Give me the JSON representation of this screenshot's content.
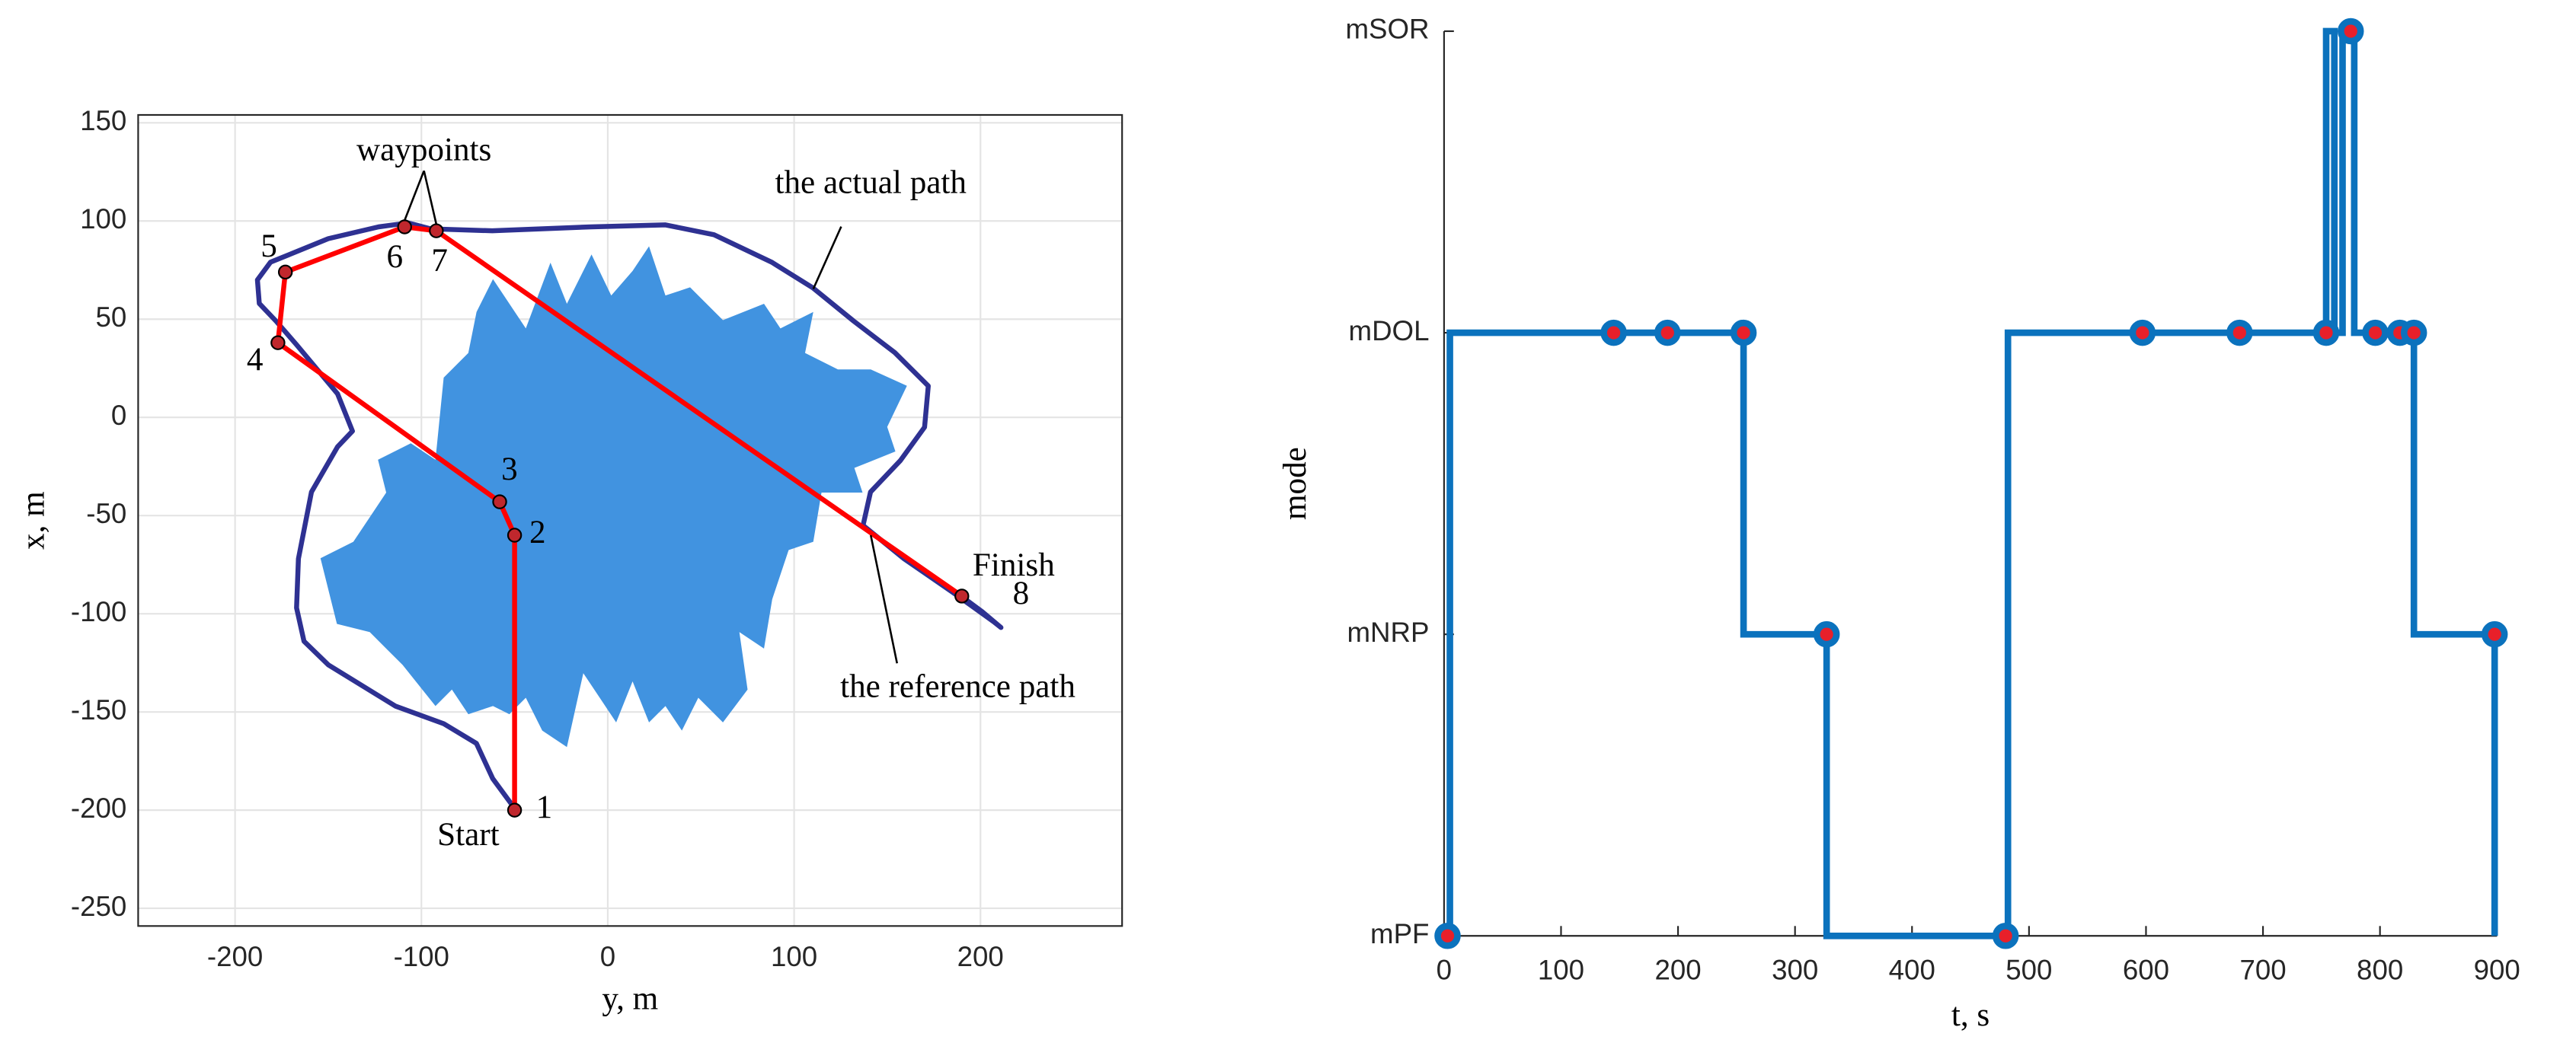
{
  "chart_data": [
    {
      "type": "path",
      "x_label": "y, m",
      "y_label": "x, m",
      "xlim": [
        -252,
        276
      ],
      "ylim": [
        -259,
        154
      ],
      "xticks": [
        -200,
        -100,
        0,
        100,
        200
      ],
      "yticks": [
        -250,
        -200,
        -150,
        -100,
        -50,
        0,
        50,
        100,
        150
      ],
      "grid": true,
      "series": [
        {
          "name": "the actual path",
          "color": "#2e3192",
          "x": [
            -49.3,
            -61.7,
            -70.5,
            -88,
            -114,
            -150,
            -163,
            -167,
            -166,
            -159,
            -145,
            -137,
            -145,
            -167,
            -178,
            -187,
            -188,
            -181,
            -150,
            -123,
            -107,
            -95,
            -62,
            -9,
            31,
            57,
            88,
            110,
            132,
            154,
            172,
            170,
            157,
            141,
            137,
            159,
            185,
            207,
            211,
            201,
            191
          ],
          "values": [
            -200,
            -184,
            -166,
            -156,
            -147,
            -126,
            -114,
            -97,
            -72,
            -38,
            -15,
            -7,
            12,
            37,
            49,
            58,
            70,
            79,
            91,
            97,
            99,
            96,
            95,
            97,
            98,
            93,
            79,
            66,
            49,
            33,
            16,
            -5,
            -22,
            -38,
            -55,
            -72,
            -89,
            -104,
            -107,
            -99,
            -92
          ]
        },
        {
          "name": "the reference path",
          "color": "#ff0000",
          "x": [
            -50,
            -50,
            -58,
            -177,
            -173,
            -109,
            -92,
            190
          ],
          "values": [
            -200,
            -60,
            -43,
            38,
            74,
            97,
            95,
            -91
          ]
        }
      ],
      "waypoint_labels": [
        "1",
        "2",
        "3",
        "4",
        "5",
        "6",
        "7",
        "8"
      ],
      "annotations": [
        "waypoints",
        "Start",
        "Finish"
      ]
    },
    {
      "type": "step",
      "x_label": "t, s",
      "y_label": "mode",
      "xlim": [
        0,
        900
      ],
      "ylim": [
        0,
        3
      ],
      "xticks": [
        0,
        100,
        200,
        300,
        400,
        500,
        600,
        700,
        800,
        900
      ],
      "yticks": [
        {
          "value": 0,
          "label": "mPF"
        },
        {
          "value": 1,
          "label": "mNRP"
        },
        {
          "value": 2,
          "label": "mDOL"
        },
        {
          "value": 3,
          "label": "mSOR"
        }
      ],
      "grid": false,
      "series": [
        {
          "color": "#0b72bd",
          "x": [
            3,
            5,
            5,
            256,
            256,
            327,
            327,
            480,
            482,
            482,
            754,
            754,
            761,
            761,
            768,
            768,
            778,
            778,
            829,
            829,
            898,
            898
          ],
          "values": [
            0,
            0,
            2,
            2,
            1,
            1,
            0,
            0,
            0,
            2,
            2,
            3,
            3,
            2,
            2,
            3,
            3,
            2,
            2,
            1,
            1,
            0
          ]
        }
      ],
      "markers": {
        "color": "#e8202a",
        "x": [
          3,
          145,
          191,
          256,
          327,
          480,
          597,
          680,
          754,
          775,
          796,
          817,
          829,
          898
        ],
        "values": [
          0,
          2,
          2,
          2,
          1,
          0,
          2,
          2,
          2,
          3,
          2,
          2,
          2,
          1
        ]
      }
    }
  ]
}
